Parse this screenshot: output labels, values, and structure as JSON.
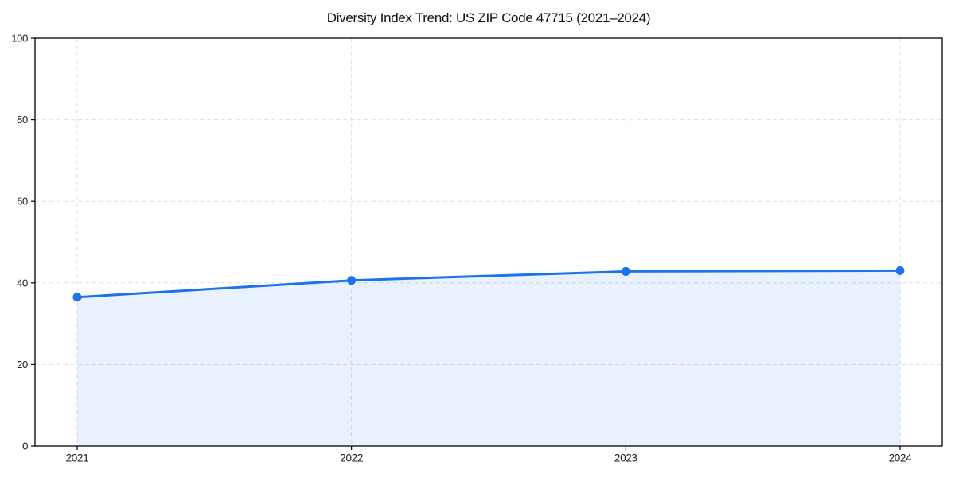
{
  "chart_data": {
    "type": "area",
    "title": "Diversity Index Trend: US ZIP Code 47715 (2021–2024)",
    "x": [
      "2021",
      "2022",
      "2023",
      "2024"
    ],
    "values": [
      36.5,
      40.6,
      42.8,
      43.0
    ],
    "xlabel": "",
    "ylabel": "",
    "ylim": [
      0,
      100
    ],
    "yticks": [
      0,
      20,
      40,
      60,
      80,
      100
    ],
    "grid": true,
    "grid_style": "dashed",
    "legend_position": "none",
    "line_color": "#1a73e8",
    "fill_color": "rgba(26,115,232,0.10)",
    "marker": "circle",
    "axis_color": "#000000",
    "grid_color": "#dfdfdf",
    "text_color": "#1a1a1a"
  }
}
